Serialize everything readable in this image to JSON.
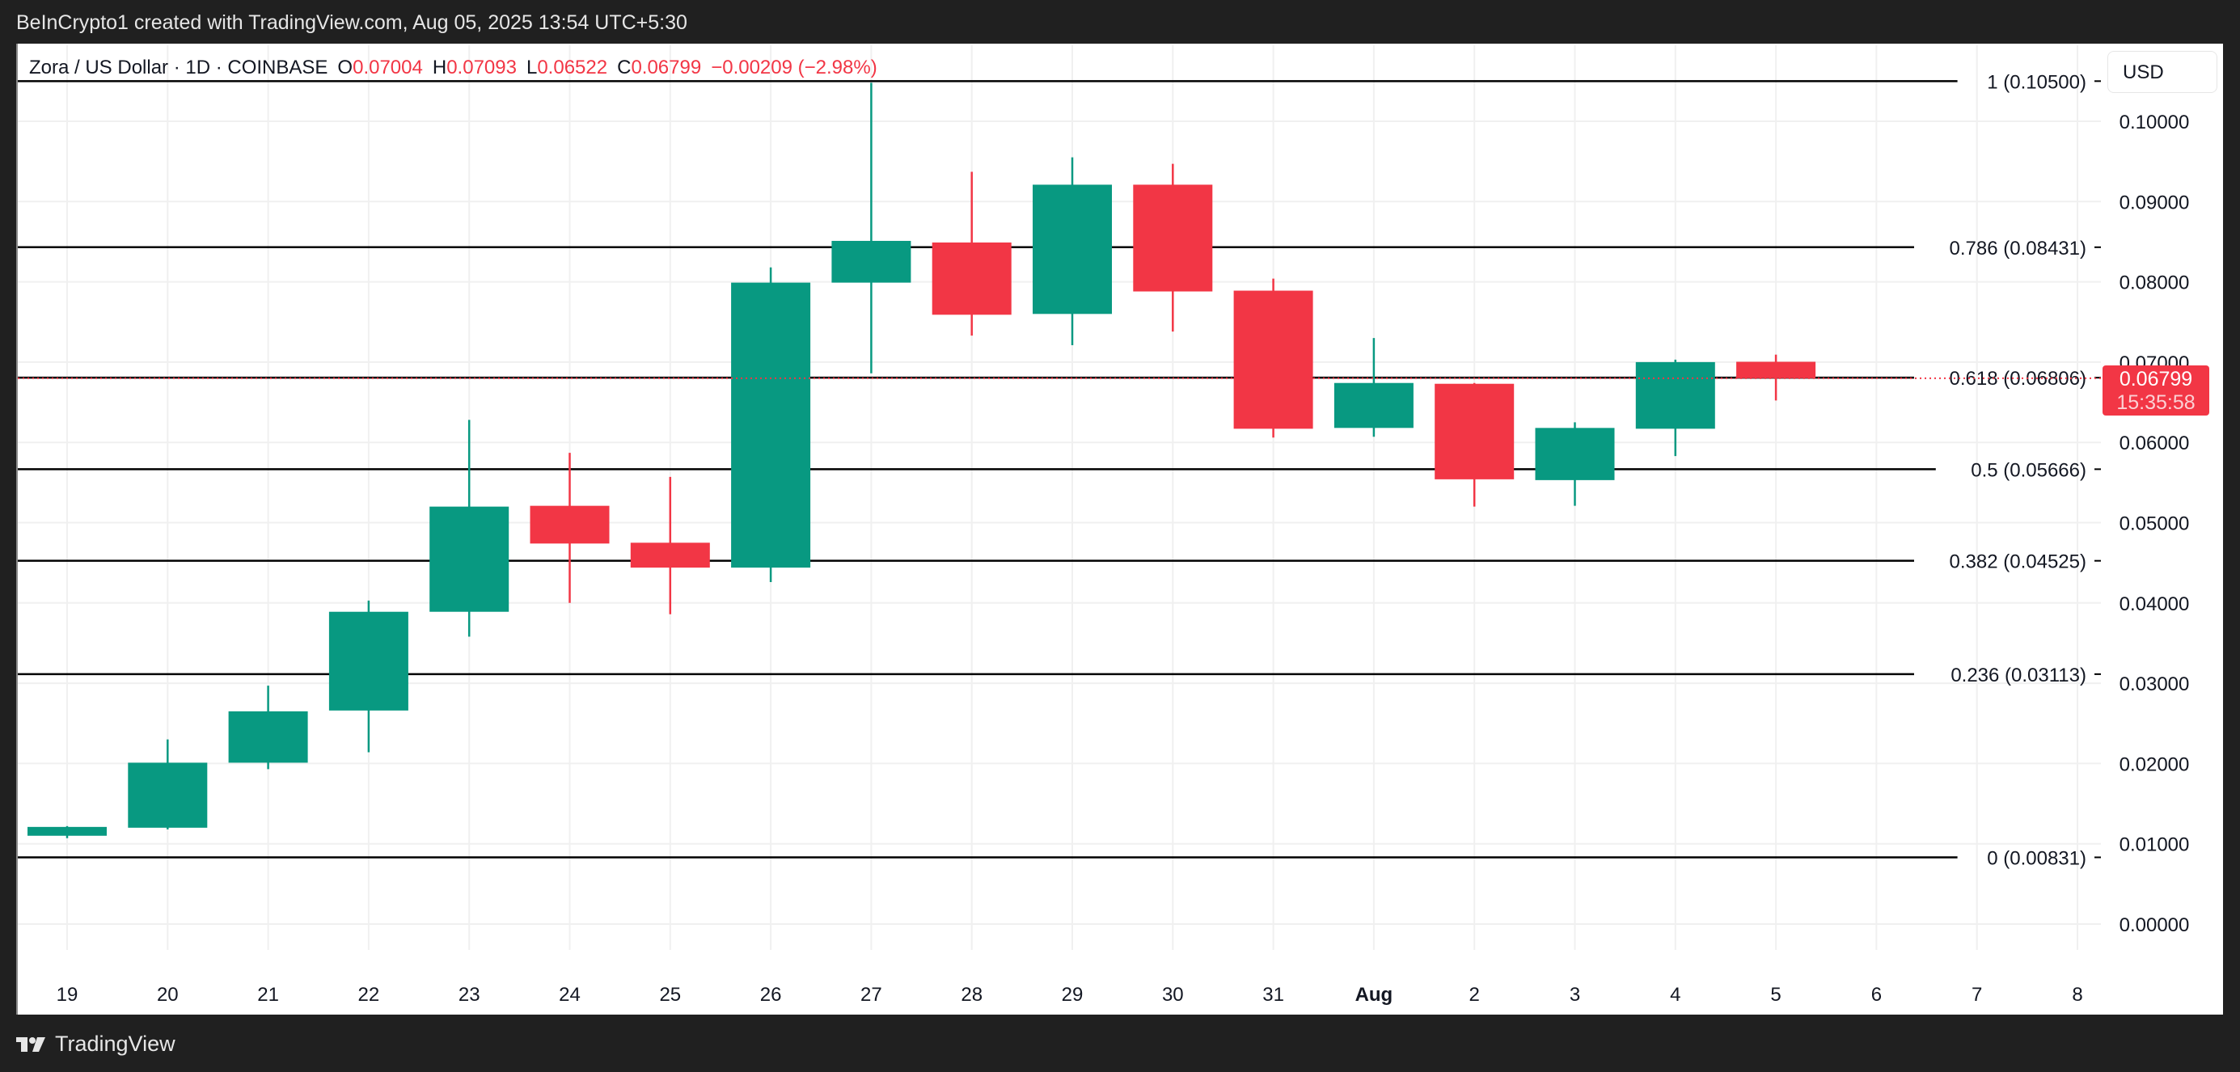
{
  "header": {
    "credit": "BeInCrypto1 created with TradingView.com, Aug 05, 2025 13:54 UTC+5:30"
  },
  "legend": {
    "symbol": "Zora / US Dollar · 1D · COINBASE",
    "open_label": "O",
    "open": "0.07004",
    "high_label": "H",
    "high": "0.07093",
    "low_label": "L",
    "low": "0.06522",
    "close_label": "C",
    "close": "0.06799",
    "change": "−0.00209 (−2.98%)"
  },
  "price_axis": {
    "currency_button": "USD",
    "last_price": "0.06799",
    "countdown": "15:35:58"
  },
  "footer": {
    "brand": "TradingView"
  },
  "colors": {
    "up": "#089981",
    "down": "#f23645",
    "grid": "#f0f0f0",
    "fib_line": "#000000",
    "background": "#202020"
  },
  "chart_data": {
    "type": "candlestick",
    "title": "Zora / US Dollar · 1D · COINBASE",
    "xlabel": "",
    "ylabel": "USD",
    "ylim": [
      -0.0045,
      0.1055
    ],
    "grid": true,
    "x_tick_labels": [
      "19",
      "20",
      "21",
      "22",
      "23",
      "24",
      "25",
      "26",
      "27",
      "28",
      "29",
      "30",
      "31",
      "Aug",
      "2",
      "3",
      "4",
      "5",
      "6",
      "7",
      "8"
    ],
    "y_tick_labels": [
      "0.10000",
      "0.09000",
      "0.08000",
      "0.07000",
      "0.06000",
      "0.05000",
      "0.04000",
      "0.03000",
      "0.02000",
      "0.01000",
      "0.00000"
    ],
    "y_ticks": [
      0.1,
      0.09,
      0.08,
      0.07,
      0.06,
      0.05,
      0.04,
      0.03,
      0.02,
      0.01,
      0.0
    ],
    "candles": [
      {
        "date": "19",
        "o": 0.011,
        "h": 0.0122,
        "l": 0.0107,
        "c": 0.0121
      },
      {
        "date": "20",
        "o": 0.012,
        "h": 0.023,
        "l": 0.0118,
        "c": 0.0201
      },
      {
        "date": "21",
        "o": 0.0201,
        "h": 0.0297,
        "l": 0.0193,
        "c": 0.0265
      },
      {
        "date": "22",
        "o": 0.0266,
        "h": 0.0403,
        "l": 0.0214,
        "c": 0.0389
      },
      {
        "date": "23",
        "o": 0.0389,
        "h": 0.0628,
        "l": 0.0358,
        "c": 0.052
      },
      {
        "date": "24",
        "o": 0.0521,
        "h": 0.0587,
        "l": 0.04,
        "c": 0.0474
      },
      {
        "date": "25",
        "o": 0.0475,
        "h": 0.0557,
        "l": 0.0386,
        "c": 0.0444
      },
      {
        "date": "26",
        "o": 0.0444,
        "h": 0.0818,
        "l": 0.0426,
        "c": 0.0799
      },
      {
        "date": "27",
        "o": 0.0799,
        "h": 0.1048,
        "l": 0.0686,
        "c": 0.0851
      },
      {
        "date": "28",
        "o": 0.0849,
        "h": 0.0937,
        "l": 0.0733,
        "c": 0.0759
      },
      {
        "date": "29",
        "o": 0.076,
        "h": 0.0955,
        "l": 0.0721,
        "c": 0.0921
      },
      {
        "date": "30",
        "o": 0.0921,
        "h": 0.0947,
        "l": 0.0738,
        "c": 0.0788
      },
      {
        "date": "31",
        "o": 0.0789,
        "h": 0.0804,
        "l": 0.0606,
        "c": 0.0617
      },
      {
        "date": "Aug 1",
        "o": 0.0618,
        "h": 0.073,
        "l": 0.0607,
        "c": 0.0674
      },
      {
        "date": "2",
        "o": 0.0673,
        "h": 0.0674,
        "l": 0.052,
        "c": 0.0554
      },
      {
        "date": "3",
        "o": 0.0553,
        "h": 0.0625,
        "l": 0.0521,
        "c": 0.0618
      },
      {
        "date": "4",
        "o": 0.0617,
        "h": 0.0703,
        "l": 0.0583,
        "c": 0.07
      },
      {
        "date": "5",
        "o": 0.07004,
        "h": 0.07093,
        "l": 0.06522,
        "c": 0.06799
      }
    ],
    "fib_levels": [
      {
        "ratio": "1",
        "price": 0.105,
        "label": "1 (0.10500)"
      },
      {
        "ratio": "0.786",
        "price": 0.08431,
        "label": "0.786 (0.08431)"
      },
      {
        "ratio": "0.618",
        "price": 0.06806,
        "label": "0.618 (0.06806)"
      },
      {
        "ratio": "0.5",
        "price": 0.05666,
        "label": "0.5 (0.05666)"
      },
      {
        "ratio": "0.382",
        "price": 0.04525,
        "label": "0.382 (0.04525)"
      },
      {
        "ratio": "0.236",
        "price": 0.03113,
        "label": "0.236 (0.03113)"
      },
      {
        "ratio": "0",
        "price": 0.00831,
        "label": "0 (0.00831)"
      }
    ],
    "last_price": 0.06799
  }
}
